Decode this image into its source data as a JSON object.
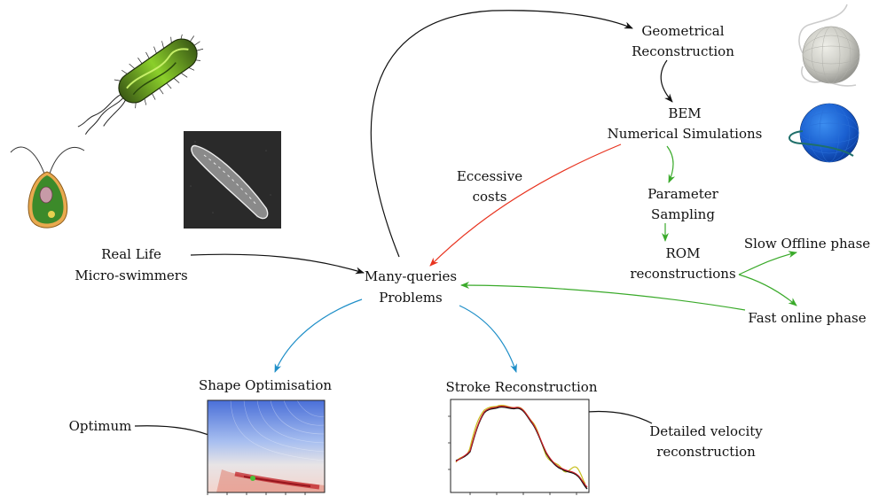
{
  "labels": {
    "geometrical": [
      "Geometrical",
      "Reconstruction"
    ],
    "bem": [
      "BEM",
      "Numerical Simulations"
    ],
    "eccessive": [
      "Eccessive",
      "costs"
    ],
    "parameter": [
      "Parameter",
      "Sampling"
    ],
    "rom": [
      "ROM",
      "reconstructions"
    ],
    "slow": "Slow Offline phase",
    "fast": "Fast online phase",
    "real_life": [
      "Real Life",
      "Micro-swimmers"
    ],
    "many_queries": [
      "Many-queries",
      "Problems"
    ],
    "shape_opt": "Shape Optimisation",
    "stroke": "Stroke Reconstruction",
    "optimum": "Optimum",
    "detailed": [
      "Detailed velocity",
      "reconstruction"
    ]
  },
  "colors": {
    "black": "#111111",
    "red": "#e8331f",
    "green": "#3aaa2a",
    "blue": "#1f8fc8"
  },
  "icons": [
    "bacterium-icon",
    "algae-cell-icon",
    "microscope-photo-icon",
    "grey-sphere-mesh-icon",
    "blue-sphere-mesh-icon",
    "heatmap-plot-icon",
    "velocity-plot-icon"
  ]
}
